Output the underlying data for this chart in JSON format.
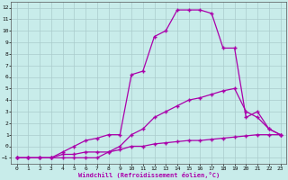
{
  "xlabel": "Windchill (Refroidissement éolien,°C)",
  "bg_color": "#c8ecea",
  "grid_color": "#aacccc",
  "line_color": "#aa00aa",
  "xlim": [
    -0.5,
    23.5
  ],
  "ylim": [
    -1.5,
    12.5
  ],
  "xticks": [
    0,
    1,
    2,
    3,
    4,
    5,
    6,
    7,
    8,
    9,
    10,
    11,
    12,
    13,
    14,
    15,
    16,
    17,
    18,
    19,
    20,
    21,
    22,
    23
  ],
  "yticks": [
    -1,
    0,
    1,
    2,
    3,
    4,
    5,
    6,
    7,
    8,
    9,
    10,
    11,
    12
  ],
  "line1_x": [
    0,
    1,
    2,
    3,
    4,
    5,
    6,
    7,
    8,
    9,
    10,
    11,
    12,
    13,
    14,
    15,
    16,
    17,
    18,
    19,
    20,
    21,
    22,
    23
  ],
  "line1_y": [
    -1,
    -1,
    -1,
    -1,
    -0.7,
    -0.7,
    -0.5,
    -0.5,
    -0.5,
    -0.3,
    0.0,
    0.0,
    0.2,
    0.3,
    0.4,
    0.5,
    0.5,
    0.6,
    0.7,
    0.8,
    0.9,
    1.0,
    1.0,
    1.0
  ],
  "line2_x": [
    0,
    1,
    2,
    3,
    4,
    5,
    6,
    7,
    8,
    9,
    10,
    11,
    12,
    13,
    14,
    15,
    16,
    17,
    18,
    19,
    20,
    21,
    22,
    23
  ],
  "line2_y": [
    -1,
    -1,
    -1,
    -1,
    -0.5,
    0.0,
    0.5,
    0.7,
    1.0,
    1.0,
    6.2,
    6.5,
    9.5,
    10.0,
    11.8,
    11.8,
    11.8,
    11.5,
    8.5,
    8.5,
    2.5,
    3.0,
    1.5,
    1.0
  ],
  "line3_x": [
    0,
    1,
    2,
    3,
    4,
    5,
    6,
    7,
    8,
    9,
    10,
    11,
    12,
    13,
    14,
    15,
    16,
    17,
    18,
    19,
    20,
    21,
    22,
    23
  ],
  "line3_y": [
    -1,
    -1,
    -1,
    -1,
    -1,
    -1,
    -1,
    -1,
    -0.5,
    0.0,
    1.0,
    1.5,
    2.5,
    3.0,
    3.5,
    4.0,
    4.2,
    4.5,
    4.8,
    5.0,
    3.0,
    2.5,
    1.5,
    1.0
  ]
}
